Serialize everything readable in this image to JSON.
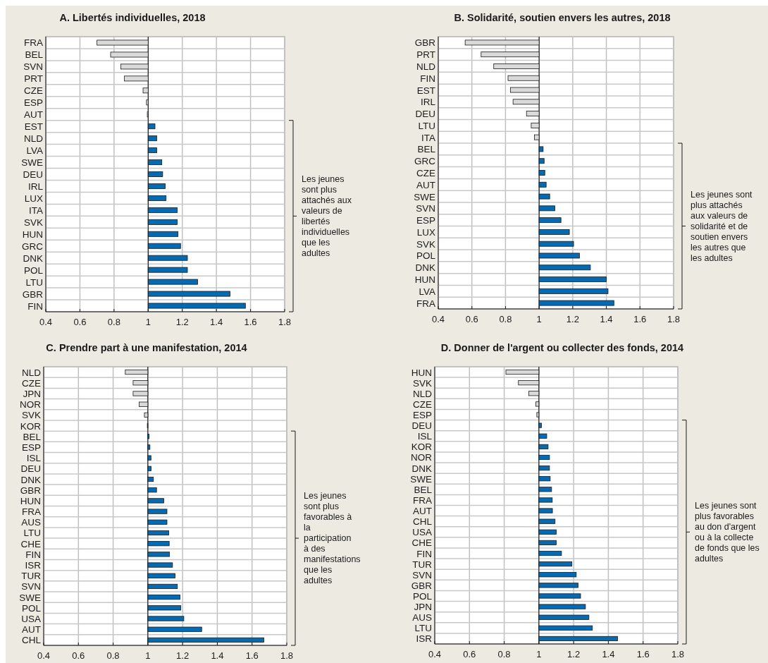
{
  "chart_data": [
    {
      "type": "bar",
      "orientation": "horizontal",
      "title": "A. Libertés individuelles, 2018",
      "categories": [
        "FRA",
        "BEL",
        "SVN",
        "PRT",
        "CZE",
        "ESP",
        "AUT",
        "EST",
        "NLD",
        "LVA",
        "SWE",
        "DEU",
        "IRL",
        "LUX",
        "ITA",
        "SVK",
        "HUN",
        "GRC",
        "DNK",
        "POL",
        "LTU",
        "GBR",
        "FIN"
      ],
      "values": [
        -0.3,
        -0.22,
        -0.16,
        -0.14,
        -0.03,
        -0.01,
        -0.005,
        0.04,
        0.05,
        0.05,
        0.08,
        0.085,
        0.1,
        0.105,
        0.17,
        0.17,
        0.175,
        0.19,
        0.23,
        0.23,
        0.29,
        0.48,
        0.57
      ],
      "base": [
        1,
        1,
        1,
        1,
        1,
        1,
        1,
        1,
        1,
        1,
        1,
        1,
        1,
        1,
        1,
        1,
        1,
        1,
        1,
        1,
        1,
        1,
        1
      ],
      "colors": [
        "#d9d9d9",
        "#d9d9d9",
        "#d9d9d9",
        "#d9d9d9",
        "#d9d9d9",
        "#d9d9d9",
        "#d9d9d9",
        "#006bb6",
        "#006bb6",
        "#006bb6",
        "#006bb6",
        "#006bb6",
        "#006bb6",
        "#006bb6",
        "#006bb6",
        "#006bb6",
        "#006bb6",
        "#006bb6",
        "#006bb6",
        "#006bb6",
        "#006bb6",
        "#006bb6",
        "#006bb6"
      ],
      "xlim": [
        0.4,
        1.8
      ],
      "xticks": [
        0.4,
        0.6,
        0.8,
        1,
        1.2,
        1.4,
        1.6,
        1.8
      ],
      "grid": true,
      "ref_lines": [
        {
          "axis": "x",
          "value": 1,
          "color": "#000000"
        }
      ],
      "annotations": [
        "Les jeunes sont plus attachés aux valeurs de libertés individuelles que les adultes"
      ]
    },
    {
      "type": "bar",
      "orientation": "horizontal",
      "title": "B. Solidarité, soutien envers les autres, 2018",
      "categories": [
        "GBR",
        "PRT",
        "NLD",
        "FIN",
        "EST",
        "IRL",
        "DEU",
        "LTU",
        "ITA",
        "BEL",
        "GRC",
        "CZE",
        "AUT",
        "SWE",
        "SVN",
        "ESP",
        "LUX",
        "SVK",
        "POL",
        "DNK",
        "HUN",
        "LVA",
        "FRA"
      ],
      "values": [
        -0.44,
        -0.345,
        -0.27,
        -0.185,
        -0.17,
        -0.155,
        -0.075,
        -0.047,
        -0.028,
        0.024,
        0.03,
        0.034,
        0.042,
        0.063,
        0.094,
        0.13,
        0.18,
        0.205,
        0.24,
        0.305,
        0.4,
        0.41,
        0.445
      ],
      "base": [
        1,
        1,
        1,
        1,
        1,
        1,
        1,
        1,
        1,
        1,
        1,
        1,
        1,
        1,
        1,
        1,
        1,
        1,
        1,
        1,
        1,
        1,
        1
      ],
      "colors": [
        "#d9d9d9",
        "#d9d9d9",
        "#d9d9d9",
        "#d9d9d9",
        "#d9d9d9",
        "#d9d9d9",
        "#d9d9d9",
        "#d9d9d9",
        "#d9d9d9",
        "#006bb6",
        "#006bb6",
        "#006bb6",
        "#006bb6",
        "#006bb6",
        "#006bb6",
        "#006bb6",
        "#006bb6",
        "#006bb6",
        "#006bb6",
        "#006bb6",
        "#006bb6",
        "#006bb6",
        "#006bb6"
      ],
      "xlim": [
        0.4,
        1.8
      ],
      "xticks": [
        0.4,
        0.6,
        0.8,
        1,
        1.2,
        1.4,
        1.6,
        1.8
      ],
      "grid": true,
      "ref_lines": [
        {
          "axis": "x",
          "value": 1,
          "color": "#000000"
        }
      ],
      "annotations": [
        "Les jeunes sont plus attachés aux valeurs de solidarité et de soutien envers les autres que les adultes"
      ]
    },
    {
      "type": "bar",
      "orientation": "horizontal",
      "title": "C. Prendre part à une manifestation, 2014",
      "categories": [
        "NLD",
        "CZE",
        "JPN",
        "NOR",
        "SVK",
        "KOR",
        "BEL",
        "ESP",
        "ISL",
        "DEU",
        "DNK",
        "GBR",
        "HUN",
        "FRA",
        "AUS",
        "LTU",
        "CHE",
        "FIN",
        "ISR",
        "TUR",
        "SVN",
        "SWE",
        "POL",
        "USA",
        "AUT",
        "CHL"
      ],
      "values": [
        -0.13,
        -0.085,
        -0.085,
        -0.05,
        -0.02,
        -0.003,
        0.007,
        0.012,
        0.018,
        0.019,
        0.032,
        0.05,
        0.092,
        0.11,
        0.11,
        0.12,
        0.123,
        0.125,
        0.142,
        0.157,
        0.17,
        0.185,
        0.19,
        0.207,
        0.31,
        0.668
      ],
      "base": [
        1,
        1,
        1,
        1,
        1,
        1,
        1,
        1,
        1,
        1,
        1,
        1,
        1,
        1,
        1,
        1,
        1,
        1,
        1,
        1,
        1,
        1,
        1,
        1,
        1,
        1
      ],
      "colors": [
        "#d9d9d9",
        "#d9d9d9",
        "#d9d9d9",
        "#d9d9d9",
        "#d9d9d9",
        "#d9d9d9",
        "#006bb6",
        "#006bb6",
        "#006bb6",
        "#006bb6",
        "#006bb6",
        "#006bb6",
        "#006bb6",
        "#006bb6",
        "#006bb6",
        "#006bb6",
        "#006bb6",
        "#006bb6",
        "#006bb6",
        "#006bb6",
        "#006bb6",
        "#006bb6",
        "#006bb6",
        "#006bb6",
        "#006bb6",
        "#006bb6"
      ],
      "xlim": [
        0.4,
        1.8
      ],
      "xticks": [
        0.4,
        0.6,
        0.8,
        1,
        1.2,
        1.4,
        1.6,
        1.8
      ],
      "grid": true,
      "ref_lines": [
        {
          "axis": "x",
          "value": 1,
          "color": "#000000"
        }
      ],
      "annotations": [
        "Les jeunes sont plus favorables à la participation à des manifestations que les adultes"
      ]
    },
    {
      "type": "bar",
      "orientation": "horizontal",
      "title": "D. Donner de l'argent ou collecter des fonds, 2014",
      "categories": [
        "HUN",
        "SVK",
        "NLD",
        "CZE",
        "ESP",
        "DEU",
        "ISL",
        "KOR",
        "NOR",
        "DNK",
        "SWE",
        "BEL",
        "FRA",
        "AUT",
        "CHL",
        "USA",
        "CHE",
        "FIN",
        "TUR",
        "SVN",
        "GBR",
        "POL",
        "JPN",
        "AUS",
        "LTU",
        "ISR"
      ],
      "values": [
        -0.19,
        -0.118,
        -0.058,
        -0.018,
        -0.012,
        0.015,
        0.045,
        0.053,
        0.061,
        0.061,
        0.065,
        0.073,
        0.077,
        0.078,
        0.093,
        0.1,
        0.1,
        0.13,
        0.19,
        0.215,
        0.226,
        0.24,
        0.268,
        0.288,
        0.308,
        0.453
      ],
      "base": [
        1,
        1,
        1,
        1,
        1,
        1,
        1,
        1,
        1,
        1,
        1,
        1,
        1,
        1,
        1,
        1,
        1,
        1,
        1,
        1,
        1,
        1,
        1,
        1,
        1,
        1
      ],
      "colors": [
        "#d9d9d9",
        "#d9d9d9",
        "#d9d9d9",
        "#d9d9d9",
        "#d9d9d9",
        "#006bb6",
        "#006bb6",
        "#006bb6",
        "#006bb6",
        "#006bb6",
        "#006bb6",
        "#006bb6",
        "#006bb6",
        "#006bb6",
        "#006bb6",
        "#006bb6",
        "#006bb6",
        "#006bb6",
        "#006bb6",
        "#006bb6",
        "#006bb6",
        "#006bb6",
        "#006bb6",
        "#006bb6",
        "#006bb6",
        "#006bb6"
      ],
      "xlim": [
        0.4,
        1.8
      ],
      "xticks": [
        0.4,
        0.6,
        0.8,
        1,
        1.2,
        1.4,
        1.6,
        1.8
      ],
      "grid": true,
      "ref_lines": [
        {
          "axis": "x",
          "value": 1,
          "color": "#000000"
        }
      ],
      "annotations": [
        "Les jeunes sont plus favorables au don d'argent ou à la collecte de fonds que les adultes"
      ]
    }
  ]
}
